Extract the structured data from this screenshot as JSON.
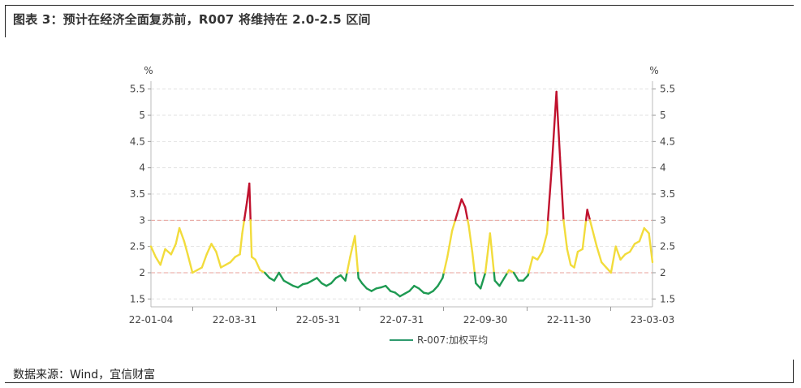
{
  "title": "图表 3：预计在经济全面复苏前，R007 将维持在 2.0-2.5 区间",
  "source": "数据来源：Wind，宜信财富",
  "colors": {
    "line_normal": "#f2dc3c",
    "line_low": "#1e9a52",
    "line_high": "#c0122e",
    "threshold_line": "#e8a09a",
    "grid": "#e2e2e2",
    "legend_line": "#2f9a6e"
  },
  "chart_data": {
    "type": "line",
    "unit_left": "%",
    "unit_right": "%",
    "ylim": [
      1.35,
      5.65
    ],
    "y_ticks": [
      "1.5",
      "2",
      "2.5",
      "3",
      "3.5",
      "4",
      "4.5",
      "5",
      "5.5"
    ],
    "x_tick_labels": [
      "22-01-04",
      "22-03-31",
      "22-05-31",
      "22-07-31",
      "22-09-30",
      "22-11-30",
      "23-03-03"
    ],
    "x_range": [
      "2022-01-04",
      "2023-03-03"
    ],
    "thresholds": [
      2,
      3
    ],
    "legend": [
      "R-007:加权平均"
    ],
    "series": [
      {
        "name": "R-007:加权平均",
        "x": [
          "2022-01-04",
          "2022-01-08",
          "2022-01-12",
          "2022-01-16",
          "2022-01-21",
          "2022-01-25",
          "2022-01-28",
          "2022-02-01",
          "2022-02-04",
          "2022-02-08",
          "2022-02-12",
          "2022-02-16",
          "2022-02-20",
          "2022-02-24",
          "2022-02-28",
          "2022-03-04",
          "2022-03-08",
          "2022-03-12",
          "2022-03-16",
          "2022-03-20",
          "2022-03-22",
          "2022-03-24",
          "2022-03-26",
          "2022-03-28",
          "2022-03-30",
          "2022-04-02",
          "2022-04-06",
          "2022-04-10",
          "2022-04-14",
          "2022-04-18",
          "2022-04-22",
          "2022-04-26",
          "2022-04-30",
          "2022-05-04",
          "2022-05-08",
          "2022-05-12",
          "2022-05-16",
          "2022-05-20",
          "2022-05-24",
          "2022-05-28",
          "2022-06-01",
          "2022-06-05",
          "2022-06-09",
          "2022-06-13",
          "2022-06-17",
          "2022-06-21",
          "2022-06-25",
          "2022-06-28",
          "2022-07-01",
          "2022-07-05",
          "2022-07-09",
          "2022-07-13",
          "2022-07-17",
          "2022-07-21",
          "2022-07-25",
          "2022-07-29",
          "2022-08-02",
          "2022-08-06",
          "2022-08-10",
          "2022-08-14",
          "2022-08-18",
          "2022-08-22",
          "2022-08-26",
          "2022-08-30",
          "2022-09-03",
          "2022-09-07",
          "2022-09-11",
          "2022-09-15",
          "2022-09-19",
          "2022-09-23",
          "2022-09-26",
          "2022-09-29",
          "2022-10-02",
          "2022-10-05",
          "2022-10-09",
          "2022-10-13",
          "2022-10-17",
          "2022-10-21",
          "2022-10-25",
          "2022-10-29",
          "2022-11-02",
          "2022-11-06",
          "2022-11-10",
          "2022-11-14",
          "2022-11-18",
          "2022-11-22",
          "2022-11-26",
          "2022-11-30",
          "2022-12-04",
          "2022-12-08",
          "2022-12-12",
          "2022-12-15",
          "2022-12-18",
          "2022-12-21",
          "2022-12-24",
          "2022-12-27",
          "2022-12-30",
          "2023-01-03",
          "2023-01-07",
          "2023-01-11",
          "2023-01-15",
          "2023-01-19",
          "2023-01-23",
          "2023-01-27",
          "2023-01-31",
          "2023-02-04",
          "2023-02-08",
          "2023-02-12",
          "2023-02-16",
          "2023-02-20",
          "2023-02-24",
          "2023-02-28",
          "2023-03-03"
        ],
        "values": [
          2.5,
          2.3,
          2.15,
          2.45,
          2.35,
          2.55,
          2.85,
          2.6,
          2.35,
          2.0,
          2.05,
          2.1,
          2.35,
          2.55,
          2.4,
          2.1,
          2.15,
          2.2,
          2.3,
          2.35,
          2.75,
          3.05,
          3.35,
          3.7,
          2.3,
          2.25,
          2.05,
          2.0,
          1.9,
          1.85,
          2.0,
          1.85,
          1.8,
          1.75,
          1.72,
          1.78,
          1.8,
          1.85,
          1.9,
          1.8,
          1.75,
          1.8,
          1.9,
          1.95,
          1.85,
          2.3,
          2.7,
          1.9,
          1.8,
          1.7,
          1.65,
          1.7,
          1.72,
          1.75,
          1.65,
          1.62,
          1.55,
          1.6,
          1.65,
          1.75,
          1.7,
          1.62,
          1.6,
          1.65,
          1.75,
          1.9,
          2.3,
          2.8,
          3.1,
          3.4,
          3.25,
          2.9,
          2.4,
          1.8,
          1.7,
          2.0,
          2.75,
          1.85,
          1.75,
          1.9,
          2.05,
          2.0,
          1.85,
          1.85,
          1.95,
          2.3,
          2.25,
          2.4,
          2.75,
          4.0,
          5.45,
          4.2,
          3.0,
          2.45,
          2.15,
          2.1,
          2.4,
          2.45,
          3.2,
          2.85,
          2.5,
          2.2,
          2.1,
          2.0,
          2.5,
          2.25,
          2.35,
          2.4,
          2.55,
          2.6,
          2.85,
          2.75,
          2.2
        ]
      }
    ]
  }
}
